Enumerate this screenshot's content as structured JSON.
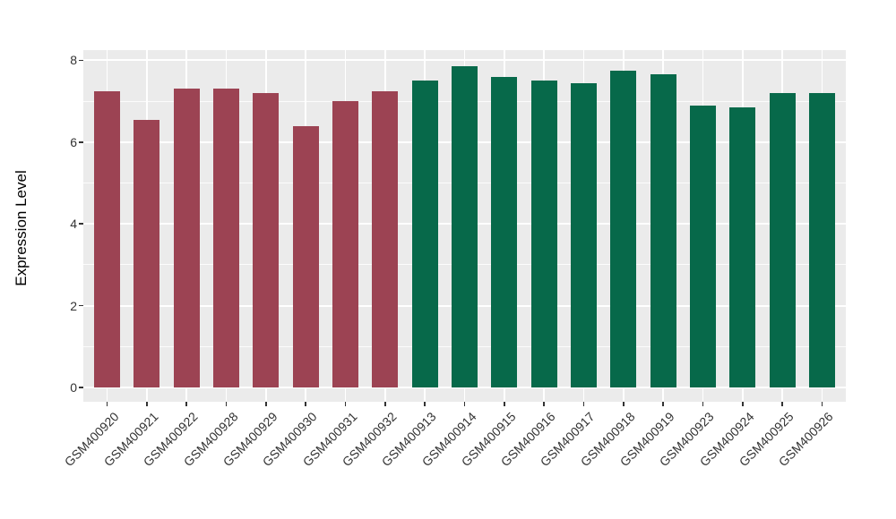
{
  "figure": {
    "background": "#FFFFFF",
    "panel_background": "#EBEBEB",
    "grid_color": "#FFFFFF",
    "tick_color": "#333333"
  },
  "chart_data": {
    "type": "bar",
    "title": "",
    "xlabel": "",
    "ylabel": "Expression Level",
    "legend": "none",
    "grid": true,
    "categories": [
      "GSM400920",
      "GSM400921",
      "GSM400922",
      "GSM400928",
      "GSM400929",
      "GSM400930",
      "GSM400931",
      "GSM400932",
      "GSM400913",
      "GSM400914",
      "GSM400915",
      "GSM400916",
      "GSM400917",
      "GSM400918",
      "GSM400919",
      "GSM400923",
      "GSM400924",
      "GSM400925",
      "GSM400926"
    ],
    "values": [
      7.25,
      6.55,
      7.3,
      7.3,
      7.2,
      6.4,
      7.0,
      7.25,
      7.5,
      7.85,
      7.6,
      7.5,
      7.45,
      7.75,
      7.65,
      6.9,
      6.85,
      7.2,
      7.2
    ],
    "colors": [
      "#9C4353",
      "#9C4353",
      "#9C4353",
      "#9C4353",
      "#9C4353",
      "#9C4353",
      "#9C4353",
      "#9C4353",
      "#07694A",
      "#07694A",
      "#07694A",
      "#07694A",
      "#07694A",
      "#07694A",
      "#07694A",
      "#07694A",
      "#07694A",
      "#07694A",
      "#07694A"
    ],
    "group_colors": {
      "maroon": "#9C4353",
      "green": "#07694A"
    },
    "ylim": [
      -0.35,
      8.25
    ],
    "y_ticks": [
      0,
      2,
      4,
      6,
      8
    ],
    "y_minor_ticks": [
      1,
      3,
      5,
      7
    ]
  }
}
